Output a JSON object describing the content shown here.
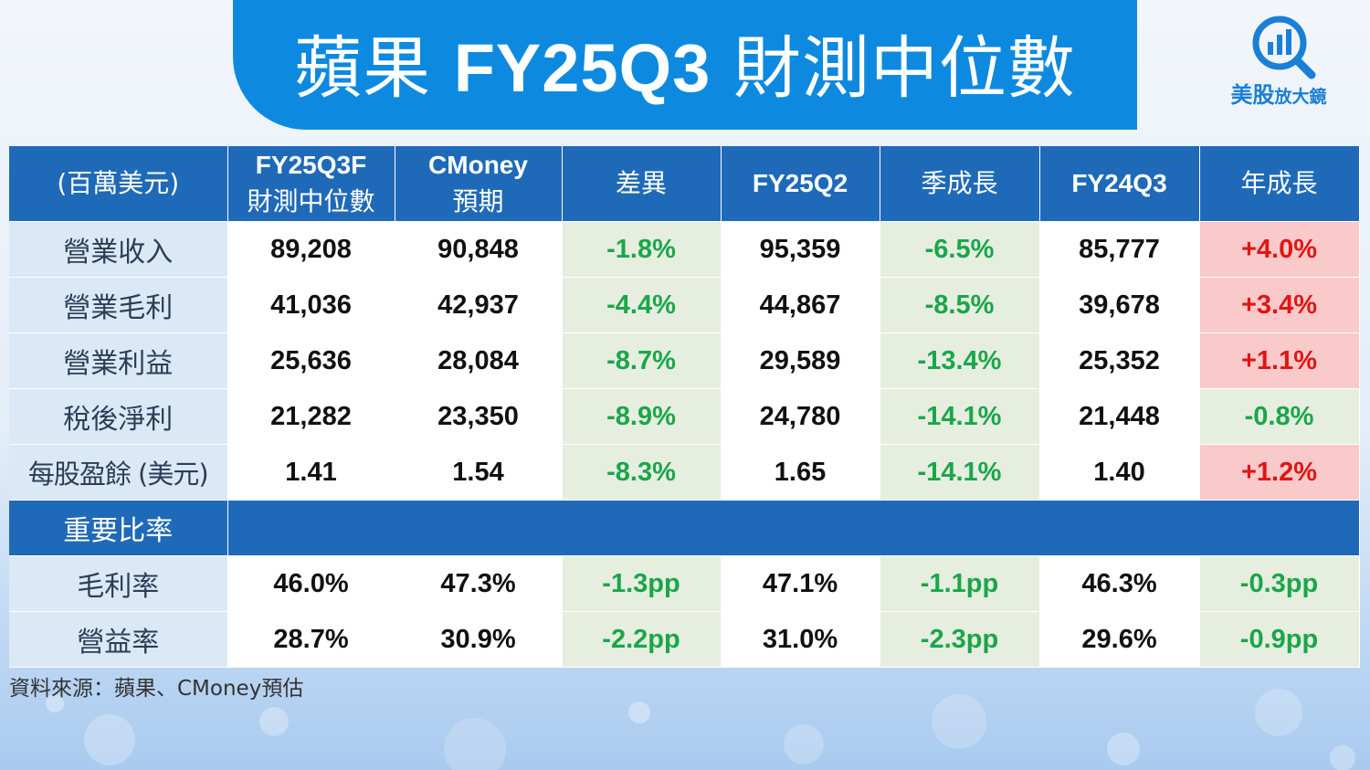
{
  "title": {
    "prefix": "蘋果 ",
    "latin": "FY25Q3",
    "suffix": " 財測中位數"
  },
  "logo": {
    "name_main": "美股",
    "name_sub": "放大鏡",
    "icon": "magnifier-bar-chart-icon",
    "color": "#1a7fd6"
  },
  "colors": {
    "header_bg": "#1f6ab8",
    "banner_bg": "#0d8ae0",
    "negative_text": "#1aa64a",
    "negative_bg": "#e6eedf",
    "positive_text": "#e01515",
    "positive_bg": "#fac9c9",
    "label_bg": "#dbe9f6"
  },
  "chart_data": {
    "type": "table",
    "columns": [
      {
        "line1": "(百萬美元)",
        "line2": ""
      },
      {
        "line1": "FY25Q3F",
        "line2": "財測中位數"
      },
      {
        "line1": "CMoney",
        "line2": "預期"
      },
      {
        "line1": "差異",
        "line2": ""
      },
      {
        "line1": "FY25Q2",
        "line2": ""
      },
      {
        "line1": "季成長",
        "line2": ""
      },
      {
        "line1": "FY24Q3",
        "line2": ""
      },
      {
        "line1": "年成長",
        "line2": ""
      }
    ],
    "rows": [
      {
        "label": "營業收入",
        "fy25q3f": "89,208",
        "cmoney": "90,848",
        "diff": "-1.8%",
        "fy25q2": "95,359",
        "qoq": "-6.5%",
        "fy24q3": "85,777",
        "yoy": "+4.0%"
      },
      {
        "label": "營業毛利",
        "fy25q3f": "41,036",
        "cmoney": "42,937",
        "diff": "-4.4%",
        "fy25q2": "44,867",
        "qoq": "-8.5%",
        "fy24q3": "39,678",
        "yoy": "+3.4%"
      },
      {
        "label": "營業利益",
        "fy25q3f": "25,636",
        "cmoney": "28,084",
        "diff": "-8.7%",
        "fy25q2": "29,589",
        "qoq": "-13.4%",
        "fy24q3": "25,352",
        "yoy": "+1.1%"
      },
      {
        "label": "稅後淨利",
        "fy25q3f": "21,282",
        "cmoney": "23,350",
        "diff": "-8.9%",
        "fy25q2": "24,780",
        "qoq": "-14.1%",
        "fy24q3": "21,448",
        "yoy": "-0.8%"
      },
      {
        "label": "每股盈餘 (美元)",
        "fy25q3f": "1.41",
        "cmoney": "1.54",
        "diff": "-8.3%",
        "fy25q2": "1.65",
        "qoq": "-14.1%",
        "fy24q3": "1.40",
        "yoy": "+1.2%"
      }
    ],
    "section_label": "重要比率",
    "ratio_rows": [
      {
        "label": "毛利率",
        "fy25q3f": "46.0%",
        "cmoney": "47.3%",
        "diff": "-1.3pp",
        "fy25q2": "47.1%",
        "qoq": "-1.1pp",
        "fy24q3": "46.3%",
        "yoy": "-0.3pp"
      },
      {
        "label": "營益率",
        "fy25q3f": "28.7%",
        "cmoney": "30.9%",
        "diff": "-2.2pp",
        "fy25q2": "31.0%",
        "qoq": "-2.3pp",
        "fy24q3": "29.6%",
        "yoy": "-0.9pp"
      }
    ]
  },
  "source": "資料來源：蘋果、CMoney預估"
}
